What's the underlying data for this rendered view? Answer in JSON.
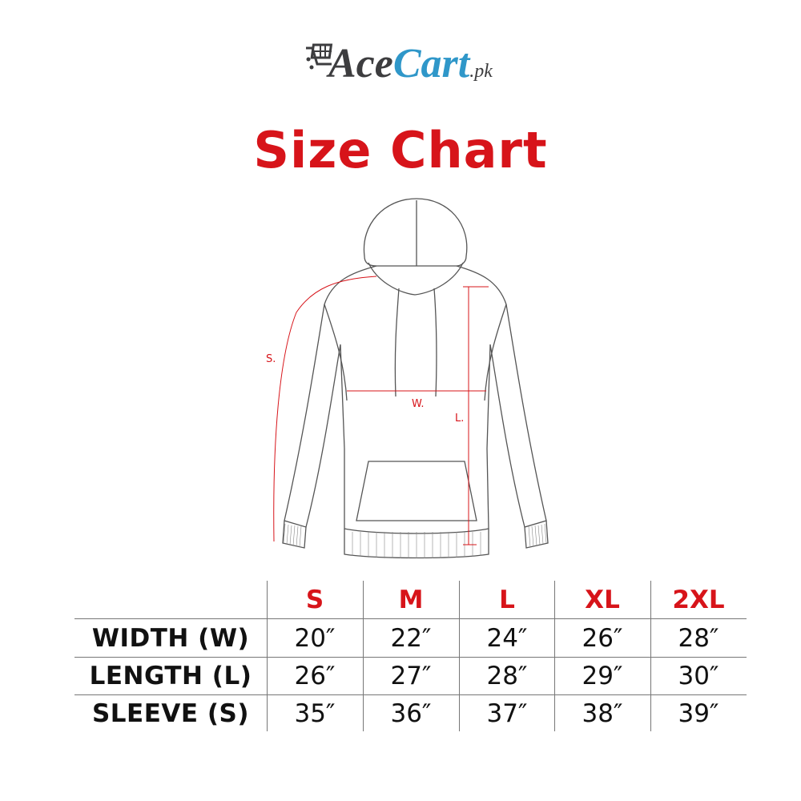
{
  "logo": {
    "text_part1": "Ace",
    "text_part2": "Cart",
    "suffix": ".pk",
    "icon": "shopping-cart-icon"
  },
  "title": "Size Chart",
  "diagram": {
    "labels": {
      "sleeve": "S.",
      "width": "W.",
      "length": "L."
    }
  },
  "size_table": {
    "columns": [
      "S",
      "M",
      "L",
      "XL",
      "2XL"
    ],
    "rows": [
      {
        "label": "WIDTH (W)",
        "values": [
          "20″",
          "22″",
          "24″",
          "26″",
          "28″"
        ]
      },
      {
        "label": "LENGTH (L)",
        "values": [
          "26″",
          "27″",
          "28″",
          "29″",
          "30″"
        ]
      },
      {
        "label": "SLEEVE (S)",
        "values": [
          "35″",
          "36″",
          "37″",
          "38″",
          "39″"
        ]
      }
    ]
  },
  "colors": {
    "accent_red": "#d7141a",
    "logo_blue": "#2f97c9",
    "logo_gray": "#3d3d3f"
  }
}
